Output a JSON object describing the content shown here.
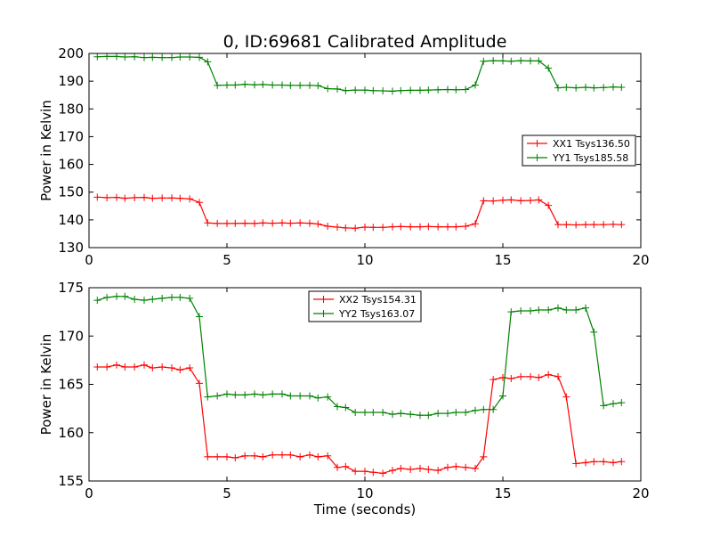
{
  "title": "0, ID:69681 Calibrated Amplitude",
  "xlabel": "Time (seconds)",
  "colors": {
    "red": "#ff0000",
    "green": "#008000"
  },
  "chart_data": [
    {
      "type": "line",
      "title": "0, ID:69681 Calibrated Amplitude",
      "xlabel": "",
      "ylabel": "Power in Kelvin",
      "xlim": [
        0,
        20
      ],
      "ylim": [
        130,
        200
      ],
      "xticks": [
        0,
        5,
        10,
        15,
        20
      ],
      "yticks": [
        130,
        140,
        150,
        160,
        170,
        180,
        190,
        200
      ],
      "legend": "right",
      "grid": false,
      "x": [
        0.3,
        0.65,
        1.0,
        1.3,
        1.65,
        2.0,
        2.3,
        2.65,
        3.0,
        3.3,
        3.65,
        4.0,
        4.3,
        4.65,
        5.0,
        5.3,
        5.65,
        6.0,
        6.3,
        6.65,
        7.0,
        7.3,
        7.65,
        8.0,
        8.3,
        8.65,
        9.0,
        9.3,
        9.65,
        10.0,
        10.3,
        10.65,
        11.0,
        11.3,
        11.65,
        12.0,
        12.3,
        12.65,
        13.0,
        13.3,
        13.65,
        14.0,
        14.3,
        14.65,
        15.0,
        15.3,
        15.65,
        16.0,
        16.3,
        16.65,
        17.0,
        17.3,
        17.65,
        18.0,
        18.3,
        18.65,
        19.0,
        19.3
      ],
      "series": [
        {
          "name": "XX1 Tsys136.50",
          "color": "#ff0000",
          "values": [
            148.2,
            148.0,
            148.1,
            147.8,
            148.0,
            148.1,
            147.8,
            147.9,
            147.9,
            147.8,
            147.6,
            146.3,
            138.9,
            138.7,
            138.7,
            138.7,
            138.8,
            138.7,
            138.9,
            138.8,
            138.9,
            138.8,
            138.9,
            138.8,
            138.5,
            137.7,
            137.4,
            137.1,
            137.0,
            137.4,
            137.3,
            137.3,
            137.5,
            137.6,
            137.5,
            137.5,
            137.6,
            137.5,
            137.5,
            137.5,
            137.7,
            138.6,
            146.9,
            146.8,
            147.1,
            147.2,
            146.9,
            147.0,
            147.2,
            145.2,
            138.3,
            138.3,
            138.2,
            138.3,
            138.3,
            138.3,
            138.4,
            138.3
          ]
        },
        {
          "name": "YY1 Tsys185.58",
          "color": "#008000",
          "values": [
            198.8,
            198.9,
            198.9,
            198.7,
            198.8,
            198.5,
            198.6,
            198.5,
            198.5,
            198.7,
            198.7,
            198.6,
            197.0,
            188.5,
            188.6,
            188.6,
            188.9,
            188.7,
            188.8,
            188.6,
            188.6,
            188.5,
            188.5,
            188.5,
            188.4,
            187.3,
            187.2,
            186.6,
            186.8,
            186.8,
            186.6,
            186.5,
            186.4,
            186.6,
            186.7,
            186.7,
            186.8,
            186.9,
            187.0,
            186.9,
            187.0,
            188.6,
            197.2,
            197.4,
            197.3,
            197.2,
            197.4,
            197.3,
            197.3,
            194.7,
            187.6,
            187.8,
            187.6,
            187.8,
            187.6,
            187.7,
            187.9,
            187.8
          ]
        }
      ]
    },
    {
      "type": "line",
      "title": "",
      "xlabel": "Time (seconds)",
      "ylabel": "Power in Kelvin",
      "xlim": [
        0,
        20
      ],
      "ylim": [
        155,
        175
      ],
      "xticks": [
        0,
        5,
        10,
        15,
        20
      ],
      "yticks": [
        155,
        160,
        165,
        170,
        175
      ],
      "legend": "top-center",
      "grid": false,
      "x": [
        0.3,
        0.65,
        1.0,
        1.3,
        1.65,
        2.0,
        2.3,
        2.65,
        3.0,
        3.3,
        3.65,
        4.0,
        4.3,
        4.65,
        5.0,
        5.3,
        5.65,
        6.0,
        6.3,
        6.65,
        7.0,
        7.3,
        7.65,
        8.0,
        8.3,
        8.65,
        9.0,
        9.3,
        9.65,
        10.0,
        10.3,
        10.65,
        11.0,
        11.3,
        11.65,
        12.0,
        12.3,
        12.65,
        13.0,
        13.3,
        13.65,
        14.0,
        14.3,
        14.65,
        15.0,
        15.3,
        15.65,
        16.0,
        16.3,
        16.65,
        17.0,
        17.3,
        17.65,
        18.0,
        18.3,
        18.65,
        19.0,
        19.3
      ],
      "series": [
        {
          "name": "XX2 Tsys154.31",
          "color": "#ff0000",
          "values": [
            166.8,
            166.8,
            167.0,
            166.8,
            166.8,
            167.0,
            166.7,
            166.8,
            166.7,
            166.5,
            166.7,
            165.1,
            157.5,
            157.5,
            157.5,
            157.4,
            157.6,
            157.6,
            157.5,
            157.7,
            157.7,
            157.7,
            157.5,
            157.7,
            157.5,
            157.6,
            156.4,
            156.5,
            156.0,
            156.0,
            155.9,
            155.8,
            156.1,
            156.3,
            156.2,
            156.3,
            156.2,
            156.1,
            156.4,
            156.5,
            156.4,
            156.3,
            157.5,
            165.5,
            165.7,
            165.6,
            165.8,
            165.8,
            165.7,
            166.0,
            165.8,
            163.7,
            156.8,
            156.9,
            157.0,
            157.0,
            156.9,
            157.0
          ]
        },
        {
          "name": "YY2 Tsys163.07",
          "color": "#008000",
          "values": [
            173.7,
            174.0,
            174.1,
            174.1,
            173.8,
            173.7,
            173.8,
            173.9,
            174.0,
            174.0,
            173.9,
            172.0,
            163.7,
            163.8,
            164.0,
            163.9,
            163.9,
            164.0,
            163.9,
            164.0,
            164.0,
            163.8,
            163.8,
            163.8,
            163.6,
            163.7,
            162.7,
            162.6,
            162.1,
            162.1,
            162.1,
            162.1,
            161.9,
            162.0,
            161.9,
            161.8,
            161.8,
            162.0,
            162.0,
            162.1,
            162.1,
            162.3,
            162.4,
            162.4,
            163.8,
            172.5,
            172.6,
            172.6,
            172.7,
            172.7,
            172.9,
            172.7,
            172.7,
            172.9,
            170.4,
            162.8,
            163.0,
            163.1
          ]
        }
      ]
    }
  ]
}
